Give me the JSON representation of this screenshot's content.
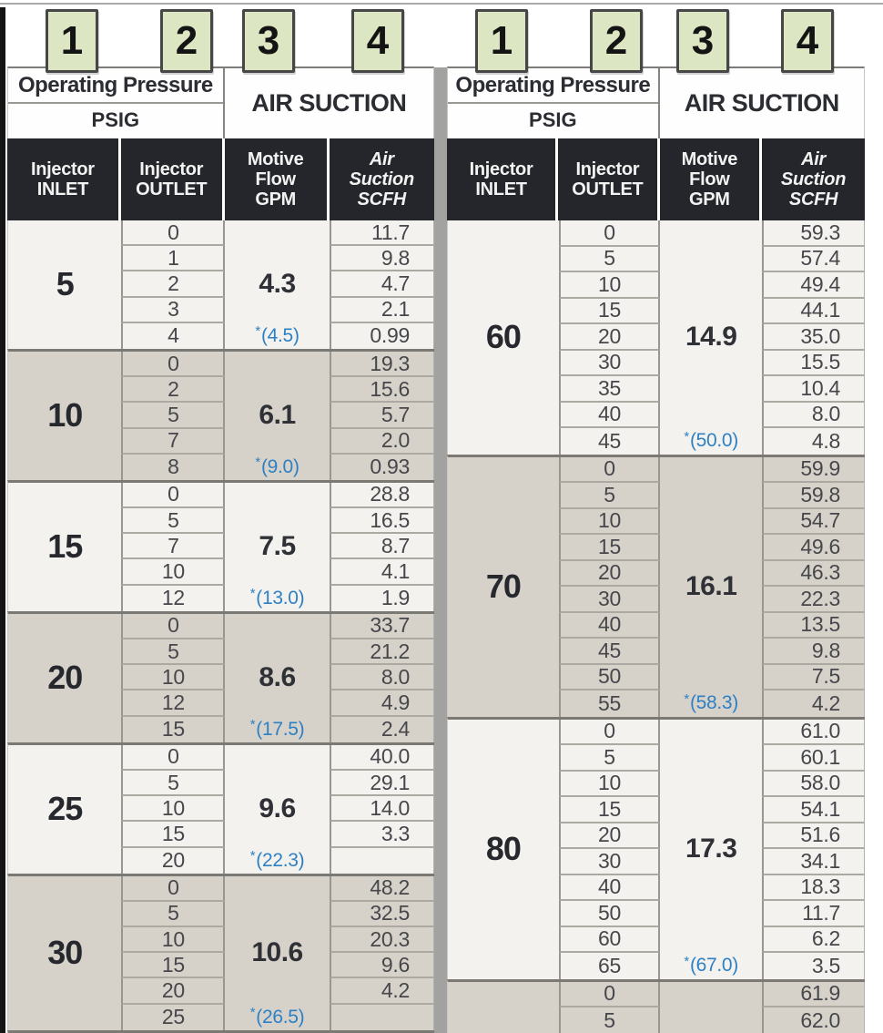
{
  "colors": {
    "accent_blue": "#2E80C4",
    "header_dark": "#24262B",
    "group_light": "#F3F2EF",
    "group_dark": "#D6D2CA",
    "tag_green": "#DCE6C3",
    "line_gray": "#98968F",
    "divider_gray": "#A2A2A0"
  },
  "labels": {
    "tags": [
      "1",
      "2",
      "3",
      "4"
    ],
    "operating_pressure": "Operating Pressure",
    "psig": "PSIG",
    "air_suction": "AIR SUCTION",
    "col_headers": [
      {
        "lines": [
          "Injector",
          "INLET"
        ],
        "italic": false
      },
      {
        "lines": [
          "Injector",
          "OUTLET"
        ],
        "italic": false
      },
      {
        "lines": [
          "Motive",
          "Flow",
          "GPM"
        ],
        "italic": false
      },
      {
        "lines": [
          "Air",
          "Suction",
          "SCFH"
        ],
        "italic": true
      }
    ]
  },
  "tables": [
    {
      "groups": [
        {
          "inlet": "5",
          "flow": "4.3",
          "star_prefix": "*",
          "star_value": "(4.5)",
          "rows": [
            {
              "outlet": "0",
              "scfh": "11.7"
            },
            {
              "outlet": "1",
              "scfh": "9.8"
            },
            {
              "outlet": "2",
              "scfh": "4.7"
            },
            {
              "outlet": "3",
              "scfh": "2.1"
            },
            {
              "outlet": "4",
              "scfh": "0.99"
            }
          ]
        },
        {
          "inlet": "10",
          "flow": "6.1",
          "star_prefix": "*",
          "star_value": "(9.0)",
          "rows": [
            {
              "outlet": "0",
              "scfh": "19.3"
            },
            {
              "outlet": "2",
              "scfh": "15.6"
            },
            {
              "outlet": "5",
              "scfh": "5.7"
            },
            {
              "outlet": "7",
              "scfh": "2.0"
            },
            {
              "outlet": "8",
              "scfh": "0.93"
            }
          ]
        },
        {
          "inlet": "15",
          "flow": "7.5",
          "star_prefix": "*",
          "star_value": "(13.0)",
          "rows": [
            {
              "outlet": "0",
              "scfh": "28.8"
            },
            {
              "outlet": "5",
              "scfh": "16.5"
            },
            {
              "outlet": "7",
              "scfh": "8.7"
            },
            {
              "outlet": "10",
              "scfh": "4.1"
            },
            {
              "outlet": "12",
              "scfh": "1.9"
            }
          ]
        },
        {
          "inlet": "20",
          "flow": "8.6",
          "star_prefix": "*",
          "star_value": "(17.5)",
          "rows": [
            {
              "outlet": "0",
              "scfh": "33.7"
            },
            {
              "outlet": "5",
              "scfh": "21.2"
            },
            {
              "outlet": "10",
              "scfh": "8.0"
            },
            {
              "outlet": "12",
              "scfh": "4.9"
            },
            {
              "outlet": "15",
              "scfh": "2.4"
            }
          ]
        },
        {
          "inlet": "25",
          "flow": "9.6",
          "star_prefix": "*",
          "star_value": "(22.3)",
          "rows": [
            {
              "outlet": "0",
              "scfh": "40.0"
            },
            {
              "outlet": "5",
              "scfh": "29.1"
            },
            {
              "outlet": "10",
              "scfh": "14.0"
            },
            {
              "outlet": "15",
              "scfh": "3.3"
            },
            {
              "outlet": "20",
              "scfh": ""
            }
          ]
        },
        {
          "inlet": "30",
          "flow": "10.6",
          "star_prefix": "*",
          "star_value": "(26.5)",
          "rows": [
            {
              "outlet": "0",
              "scfh": "48.2"
            },
            {
              "outlet": "5",
              "scfh": "32.5"
            },
            {
              "outlet": "10",
              "scfh": "20.3"
            },
            {
              "outlet": "15",
              "scfh": "9.6"
            },
            {
              "outlet": "20",
              "scfh": "4.2"
            },
            {
              "outlet": "25",
              "scfh": ""
            }
          ]
        },
        {
          "inlet": "",
          "flow": "",
          "star_prefix": "",
          "star_value": "",
          "rows": [
            {
              "outlet": "",
              "scfh": ""
            }
          ]
        }
      ]
    },
    {
      "groups": [
        {
          "inlet": "60",
          "flow": "14.9",
          "star_prefix": "*",
          "star_value": "(50.0)",
          "rows": [
            {
              "outlet": "0",
              "scfh": "59.3"
            },
            {
              "outlet": "5",
              "scfh": "57.4"
            },
            {
              "outlet": "10",
              "scfh": "49.4"
            },
            {
              "outlet": "15",
              "scfh": "44.1"
            },
            {
              "outlet": "20",
              "scfh": "35.0"
            },
            {
              "outlet": "30",
              "scfh": "15.5"
            },
            {
              "outlet": "35",
              "scfh": "10.4"
            },
            {
              "outlet": "40",
              "scfh": "8.0"
            },
            {
              "outlet": "45",
              "scfh": "4.8"
            }
          ]
        },
        {
          "inlet": "70",
          "flow": "16.1",
          "star_prefix": "*",
          "star_value": "(58.3)",
          "rows": [
            {
              "outlet": "0",
              "scfh": "59.9"
            },
            {
              "outlet": "5",
              "scfh": "59.8"
            },
            {
              "outlet": "10",
              "scfh": "54.7"
            },
            {
              "outlet": "15",
              "scfh": "49.6"
            },
            {
              "outlet": "20",
              "scfh": "46.3"
            },
            {
              "outlet": "30",
              "scfh": "22.3"
            },
            {
              "outlet": "40",
              "scfh": "13.5"
            },
            {
              "outlet": "45",
              "scfh": "9.8"
            },
            {
              "outlet": "50",
              "scfh": "7.5"
            },
            {
              "outlet": "55",
              "scfh": "4.2"
            }
          ]
        },
        {
          "inlet": "80",
          "flow": "17.3",
          "star_prefix": "*",
          "star_value": "(67.0)",
          "rows": [
            {
              "outlet": "0",
              "scfh": "61.0"
            },
            {
              "outlet": "5",
              "scfh": "60.1"
            },
            {
              "outlet": "10",
              "scfh": "58.0"
            },
            {
              "outlet": "15",
              "scfh": "54.1"
            },
            {
              "outlet": "20",
              "scfh": "51.6"
            },
            {
              "outlet": "30",
              "scfh": "34.1"
            },
            {
              "outlet": "40",
              "scfh": "18.3"
            },
            {
              "outlet": "50",
              "scfh": "11.7"
            },
            {
              "outlet": "60",
              "scfh": "6.2"
            },
            {
              "outlet": "65",
              "scfh": "3.5"
            }
          ]
        },
        {
          "inlet": "",
          "flow": "",
          "star_prefix": "",
          "star_value": "",
          "rows": [
            {
              "outlet": "0",
              "scfh": "61.9"
            },
            {
              "outlet": "5",
              "scfh": "62.0"
            }
          ]
        }
      ]
    }
  ]
}
